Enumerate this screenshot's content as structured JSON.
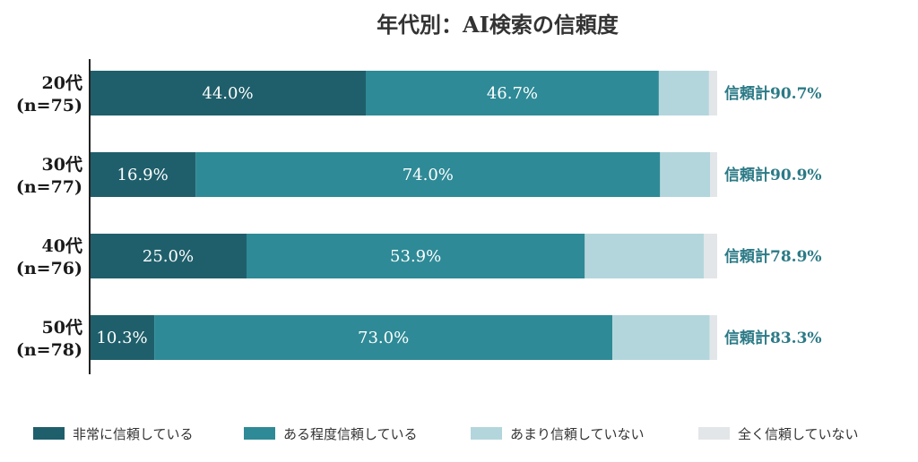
{
  "chart_data": {
    "type": "bar",
    "orientation": "horizontal",
    "stacked": true,
    "title": "年代別：AI検索の信頼度",
    "categories": [
      "20代",
      "30代",
      "40代",
      "50代"
    ],
    "category_n": [
      "(n=75)",
      "(n=77)",
      "(n=76)",
      "(n=78)"
    ],
    "series": [
      {
        "name": "非常に信頼している",
        "color": "#1f5f6b",
        "values": [
          44.0,
          16.9,
          25.0,
          10.3
        ]
      },
      {
        "name": "ある程度信頼している",
        "color": "#2e8a96",
        "values": [
          46.7,
          74.0,
          53.9,
          73.0
        ]
      },
      {
        "name": "あまり信頼していない",
        "color": "#b3d6dc",
        "values": [
          8.0,
          8.0,
          19.0,
          15.5
        ]
      },
      {
        "name": "全く信頼していない",
        "color": "#e3e6e8",
        "values": [
          1.3,
          1.1,
          2.1,
          1.2
        ]
      }
    ],
    "data_labels": [
      [
        "44.0%",
        "46.7%"
      ],
      [
        "16.9%",
        "74.0%"
      ],
      [
        "25.0%",
        "53.9%"
      ],
      [
        "10.3%",
        "73.0%"
      ]
    ],
    "totals": [
      "信頼計90.7%",
      "信頼計90.9%",
      "信頼計78.9%",
      "信頼計83.3%"
    ],
    "xlim": [
      0,
      100
    ],
    "grid": false,
    "legend_position": "bottom"
  }
}
